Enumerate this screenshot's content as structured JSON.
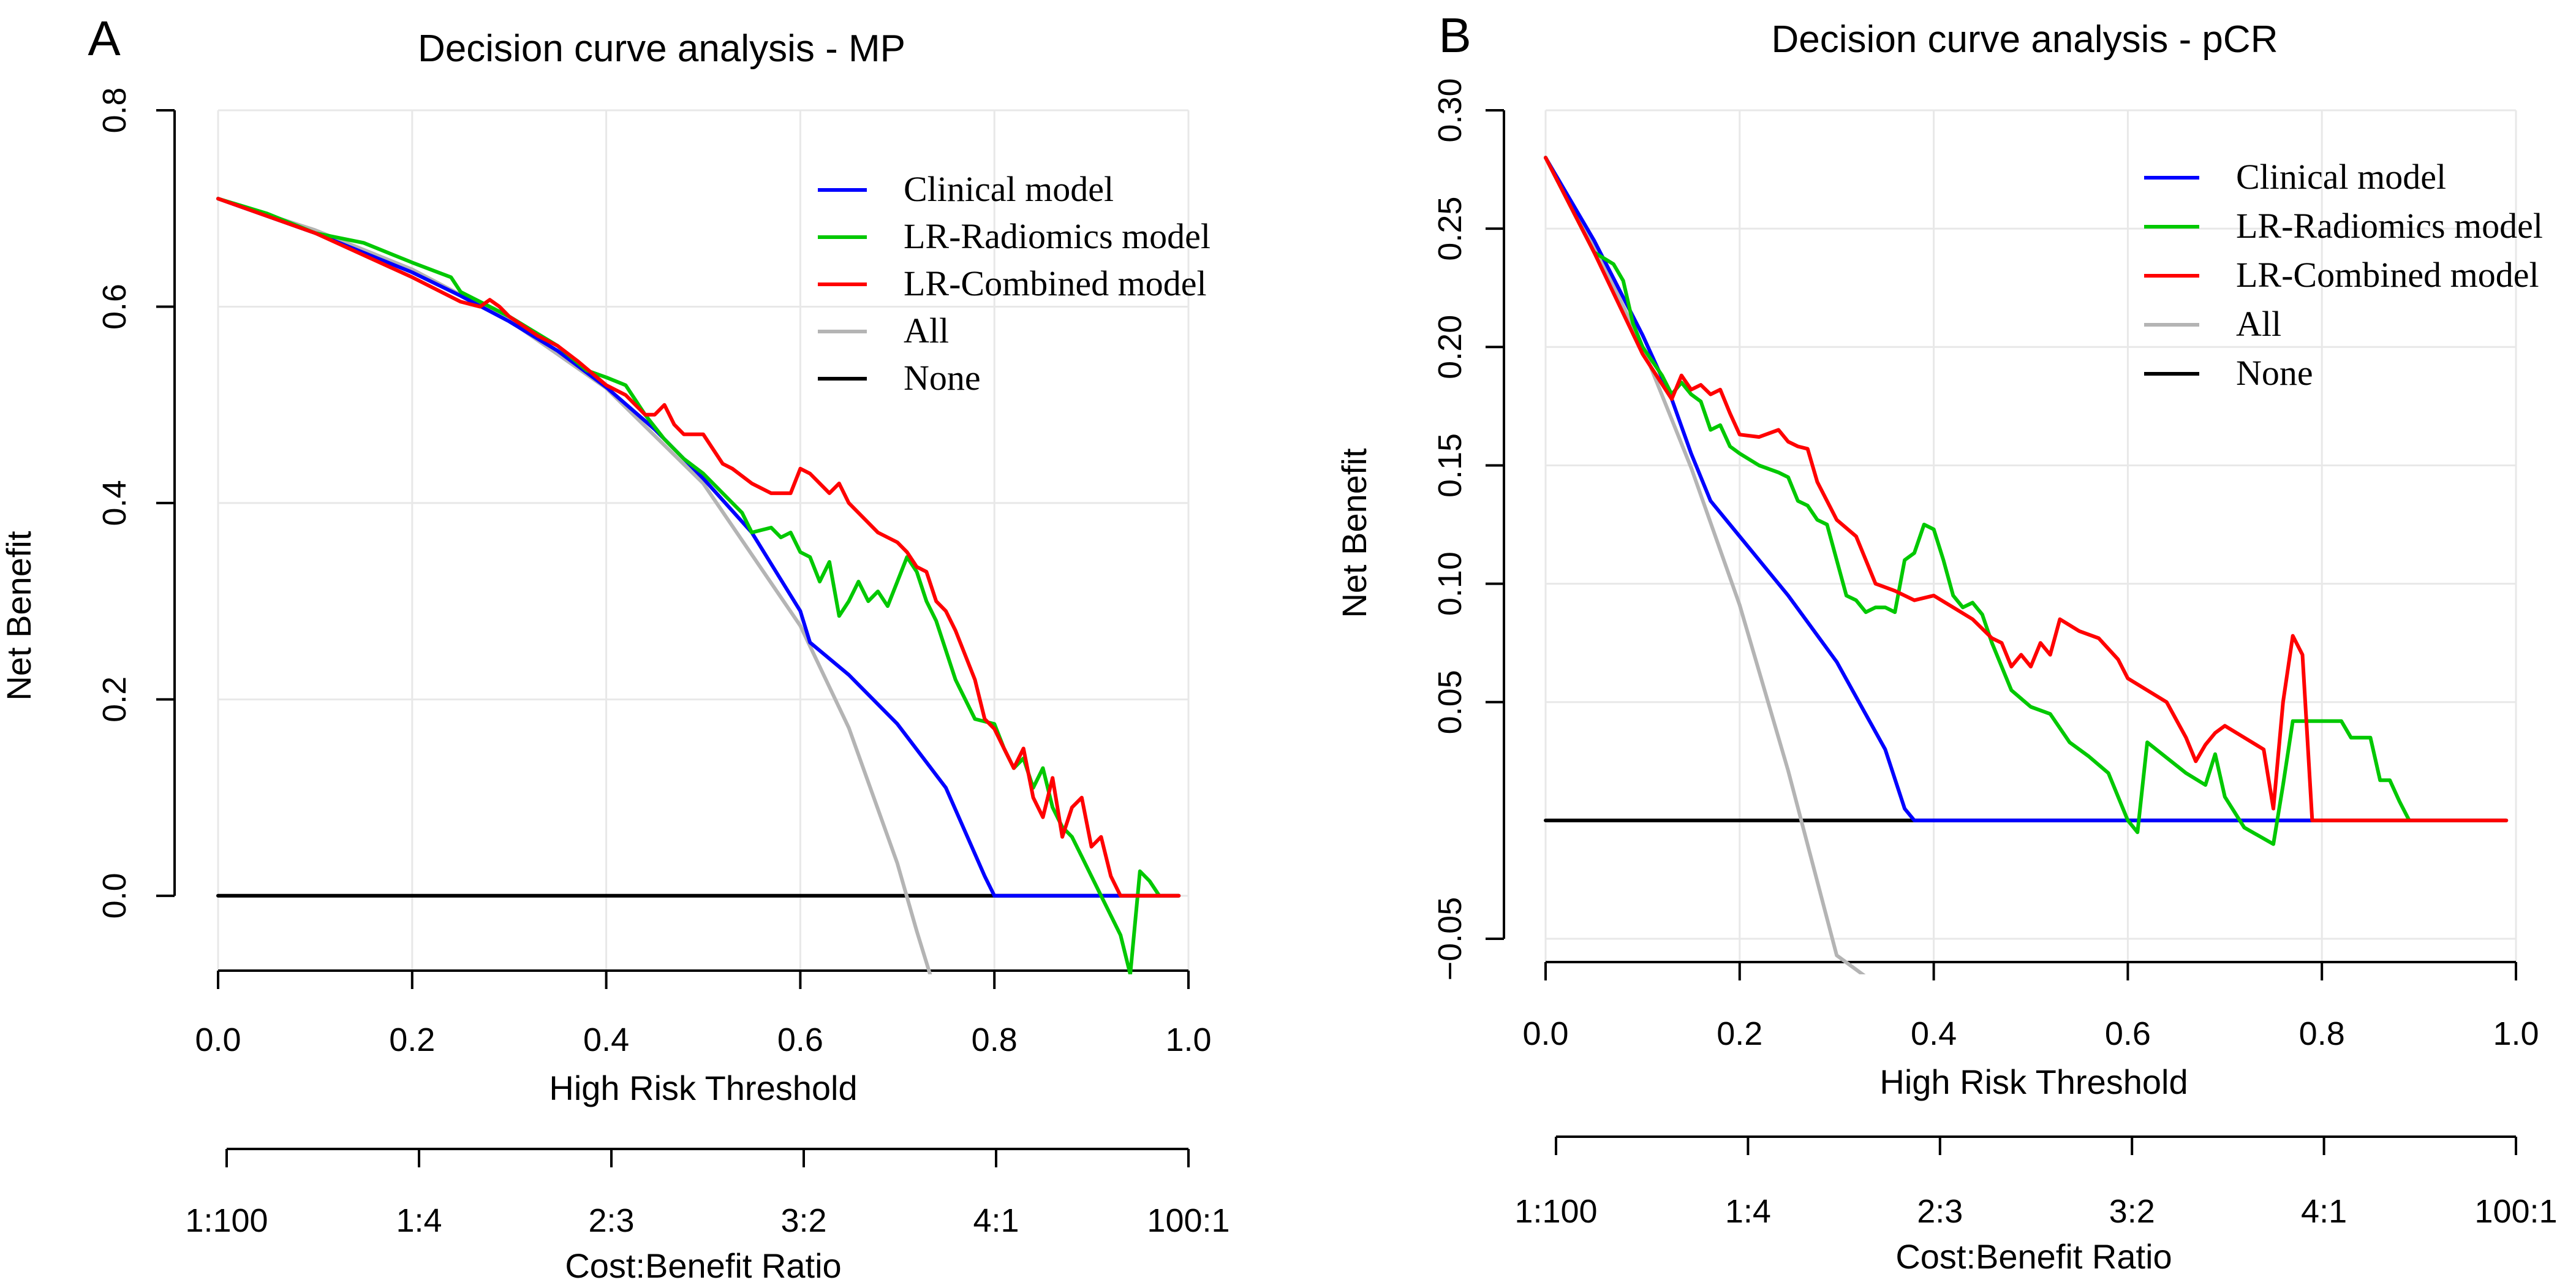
{
  "chart_data": [
    {
      "panel_label": "A",
      "type": "line",
      "title": "Decision curve analysis - MP",
      "xlabel": "High Risk Threshold",
      "ylabel": "Net Benefit",
      "xlim": [
        0,
        1
      ],
      "ylim": [
        -0.08,
        0.8
      ],
      "xticks": [
        0.0,
        0.2,
        0.4,
        0.6,
        0.8,
        1.0
      ],
      "xtick_labels": [
        "0.0",
        "0.2",
        "0.4",
        "0.6",
        "0.8",
        "1.0"
      ],
      "yticks": [
        0.0,
        0.2,
        0.4,
        0.6,
        0.8
      ],
      "ytick_labels": [
        "0.0",
        "0.2",
        "0.4",
        "0.6",
        "0.8"
      ],
      "grid": true,
      "legend_position": "top-right",
      "cost_benefit_label": "Cost:Benefit Ratio",
      "cost_benefit_ticks": [
        "1:100",
        "1:4",
        "2:3",
        "3:2",
        "4:1",
        "100:1"
      ],
      "series": [
        {
          "name": "Clinical model",
          "color": "#0000ff",
          "x": [
            0,
            0.1,
            0.2,
            0.25,
            0.3,
            0.35,
            0.4,
            0.45,
            0.5,
            0.55,
            0.6,
            0.61,
            0.65,
            0.7,
            0.75,
            0.79,
            0.8,
            0.9,
            0.95
          ],
          "y": [
            0.71,
            0.675,
            0.635,
            0.611,
            0.585,
            0.555,
            0.518,
            0.475,
            0.425,
            0.37,
            0.29,
            0.258,
            0.225,
            0.175,
            0.11,
            0.02,
            0,
            0,
            0
          ]
        },
        {
          "name": "LR-Radiomics model",
          "color": "#00c800",
          "x": [
            0,
            0.05,
            0.1,
            0.15,
            0.2,
            0.24,
            0.25,
            0.3,
            0.35,
            0.38,
            0.4,
            0.42,
            0.44,
            0.46,
            0.48,
            0.5,
            0.52,
            0.54,
            0.55,
            0.57,
            0.58,
            0.59,
            0.6,
            0.61,
            0.62,
            0.63,
            0.64,
            0.65,
            0.66,
            0.67,
            0.68,
            0.69,
            0.7,
            0.71,
            0.72,
            0.73,
            0.74,
            0.75,
            0.76,
            0.78,
            0.8,
            0.81,
            0.82,
            0.83,
            0.84,
            0.85,
            0.86,
            0.87,
            0.88,
            0.89,
            0.9,
            0.91,
            0.92,
            0.93,
            0.94,
            0.95,
            0.96,
            0.97
          ],
          "y": [
            0.71,
            0.695,
            0.675,
            0.665,
            0.645,
            0.63,
            0.615,
            0.59,
            0.56,
            0.535,
            0.528,
            0.52,
            0.49,
            0.465,
            0.445,
            0.43,
            0.41,
            0.39,
            0.37,
            0.375,
            0.365,
            0.37,
            0.35,
            0.345,
            0.32,
            0.34,
            0.285,
            0.3,
            0.32,
            0.3,
            0.31,
            0.295,
            0.32,
            0.345,
            0.33,
            0.3,
            0.28,
            0.25,
            0.22,
            0.18,
            0.175,
            0.15,
            0.13,
            0.14,
            0.11,
            0.13,
            0.09,
            0.07,
            0.06,
            0.04,
            0.02,
            0.0,
            -0.02,
            -0.04,
            -0.08,
            0.025,
            0.015,
            0.0
          ]
        },
        {
          "name": "LR-Combined model",
          "color": "#ff0000",
          "x": [
            0,
            0.1,
            0.2,
            0.25,
            0.27,
            0.28,
            0.29,
            0.3,
            0.33,
            0.35,
            0.37,
            0.4,
            0.42,
            0.44,
            0.45,
            0.46,
            0.47,
            0.48,
            0.5,
            0.52,
            0.53,
            0.55,
            0.57,
            0.59,
            0.6,
            0.61,
            0.62,
            0.63,
            0.64,
            0.65,
            0.66,
            0.68,
            0.7,
            0.71,
            0.72,
            0.73,
            0.74,
            0.75,
            0.76,
            0.78,
            0.79,
            0.8,
            0.81,
            0.82,
            0.83,
            0.84,
            0.85,
            0.86,
            0.87,
            0.88,
            0.89,
            0.9,
            0.91,
            0.92,
            0.93,
            0.94,
            0.95,
            0.96,
            0.97,
            0.99
          ],
          "y": [
            0.71,
            0.675,
            0.63,
            0.605,
            0.6,
            0.607,
            0.6,
            0.59,
            0.57,
            0.56,
            0.545,
            0.52,
            0.51,
            0.49,
            0.49,
            0.5,
            0.48,
            0.47,
            0.47,
            0.44,
            0.435,
            0.42,
            0.41,
            0.41,
            0.435,
            0.43,
            0.42,
            0.41,
            0.42,
            0.4,
            0.39,
            0.37,
            0.36,
            0.35,
            0.335,
            0.33,
            0.3,
            0.29,
            0.27,
            0.22,
            0.18,
            0.17,
            0.15,
            0.13,
            0.15,
            0.1,
            0.08,
            0.12,
            0.06,
            0.09,
            0.1,
            0.05,
            0.06,
            0.02,
            0.0,
            0.0,
            0.0,
            0.0,
            0.0,
            0.0
          ]
        },
        {
          "name": "All",
          "color": "#b4b4b4",
          "x": [
            0,
            0.1,
            0.2,
            0.3,
            0.4,
            0.5,
            0.6,
            0.65,
            0.7,
            0.72,
            0.735
          ],
          "y": [
            0.71,
            0.678,
            0.638,
            0.586,
            0.517,
            0.42,
            0.275,
            0.171,
            0.033,
            -0.036,
            -0.084
          ]
        },
        {
          "name": "None",
          "color": "#000000",
          "x": [
            0,
            0.99
          ],
          "y": [
            0,
            0
          ]
        }
      ]
    },
    {
      "panel_label": "B",
      "type": "line",
      "title": "Decision curve analysis - pCR",
      "xlabel": "High Risk Threshold",
      "ylabel": "Net Benefit",
      "xlim": [
        0,
        1
      ],
      "ylim": [
        -0.065,
        0.3
      ],
      "xticks": [
        0.0,
        0.2,
        0.4,
        0.6,
        0.8,
        1.0
      ],
      "xtick_labels": [
        "0.0",
        "0.2",
        "0.4",
        "0.6",
        "0.8",
        "1.0"
      ],
      "yticks": [
        -0.05,
        0.05,
        0.1,
        0.15,
        0.2,
        0.25,
        0.3
      ],
      "ytick_labels": [
        "−0.05",
        "0.05",
        "0.10",
        "0.15",
        "0.20",
        "0.25",
        "0.30"
      ],
      "grid": true,
      "legend_position": "top-right",
      "cost_benefit_label": "Cost:Benefit Ratio",
      "cost_benefit_ticks": [
        "1:100",
        "1:4",
        "2:3",
        "3:2",
        "4:1",
        "100:1"
      ],
      "series": [
        {
          "name": "Clinical model",
          "color": "#0000ff",
          "x": [
            0,
            0.05,
            0.1,
            0.13,
            0.15,
            0.17,
            0.2,
            0.25,
            0.3,
            0.35,
            0.37,
            0.38,
            0.5,
            0.6,
            0.7,
            0.79
          ],
          "y": [
            0.28,
            0.245,
            0.205,
            0.178,
            0.155,
            0.135,
            0.12,
            0.095,
            0.067,
            0.03,
            0.005,
            0,
            0,
            0,
            0,
            0
          ]
        },
        {
          "name": "LR-Radiomics model",
          "color": "#00c800",
          "x": [
            0,
            0.05,
            0.07,
            0.08,
            0.09,
            0.1,
            0.12,
            0.13,
            0.14,
            0.15,
            0.16,
            0.17,
            0.18,
            0.19,
            0.2,
            0.22,
            0.24,
            0.25,
            0.26,
            0.27,
            0.28,
            0.29,
            0.3,
            0.31,
            0.32,
            0.33,
            0.34,
            0.35,
            0.36,
            0.37,
            0.38,
            0.39,
            0.4,
            0.41,
            0.42,
            0.43,
            0.44,
            0.45,
            0.46,
            0.48,
            0.5,
            0.52,
            0.54,
            0.56,
            0.58,
            0.6,
            0.61,
            0.62,
            0.66,
            0.68,
            0.69,
            0.7,
            0.72,
            0.75,
            0.76,
            0.77,
            0.8,
            0.82,
            0.83,
            0.84,
            0.85,
            0.86,
            0.87,
            0.88,
            0.89
          ],
          "y": [
            0.28,
            0.24,
            0.235,
            0.228,
            0.21,
            0.2,
            0.188,
            0.18,
            0.185,
            0.18,
            0.177,
            0.165,
            0.167,
            0.158,
            0.155,
            0.15,
            0.147,
            0.145,
            0.135,
            0.133,
            0.127,
            0.125,
            0.11,
            0.095,
            0.093,
            0.088,
            0.09,
            0.09,
            0.088,
            0.11,
            0.113,
            0.125,
            0.123,
            0.11,
            0.095,
            0.09,
            0.092,
            0.087,
            0.075,
            0.055,
            0.048,
            0.045,
            0.033,
            0.027,
            0.02,
            0.0,
            -0.005,
            0.033,
            0.02,
            0.015,
            0.028,
            0.01,
            -0.003,
            -0.01,
            0.015,
            0.042,
            0.042,
            0.042,
            0.035,
            0.035,
            0.035,
            0.017,
            0.017,
            0.008,
            0.0
          ]
        },
        {
          "name": "LR-Combined model",
          "color": "#ff0000",
          "x": [
            0,
            0.05,
            0.1,
            0.13,
            0.14,
            0.15,
            0.16,
            0.17,
            0.18,
            0.19,
            0.2,
            0.22,
            0.24,
            0.25,
            0.26,
            0.27,
            0.28,
            0.3,
            0.32,
            0.34,
            0.36,
            0.38,
            0.4,
            0.42,
            0.44,
            0.46,
            0.47,
            0.48,
            0.49,
            0.5,
            0.51,
            0.52,
            0.53,
            0.55,
            0.57,
            0.59,
            0.6,
            0.62,
            0.64,
            0.66,
            0.67,
            0.68,
            0.69,
            0.7,
            0.72,
            0.74,
            0.75,
            0.76,
            0.77,
            0.78,
            0.79,
            0.8,
            0.9,
            0.99
          ],
          "y": [
            0.28,
            0.24,
            0.197,
            0.178,
            0.188,
            0.182,
            0.184,
            0.18,
            0.182,
            0.172,
            0.163,
            0.162,
            0.165,
            0.16,
            0.158,
            0.157,
            0.143,
            0.127,
            0.12,
            0.1,
            0.097,
            0.093,
            0.095,
            0.09,
            0.085,
            0.077,
            0.075,
            0.065,
            0.07,
            0.065,
            0.075,
            0.07,
            0.085,
            0.08,
            0.077,
            0.068,
            0.06,
            0.055,
            0.05,
            0.035,
            0.025,
            0.032,
            0.037,
            0.04,
            0.035,
            0.03,
            0.005,
            0.05,
            0.078,
            0.07,
            0.0,
            0.0,
            0.0,
            0.0
          ]
        },
        {
          "name": "All",
          "color": "#b4b4b4",
          "x": [
            0,
            0.05,
            0.1,
            0.15,
            0.2,
            0.25,
            0.3,
            0.33
          ],
          "y": [
            0.28,
            0.243,
            0.2,
            0.149,
            0.091,
            0.021,
            -0.057,
            -0.066
          ]
        },
        {
          "name": "None",
          "color": "#000000",
          "x": [
            0,
            0.99
          ],
          "y": [
            0,
            0
          ]
        }
      ]
    }
  ]
}
